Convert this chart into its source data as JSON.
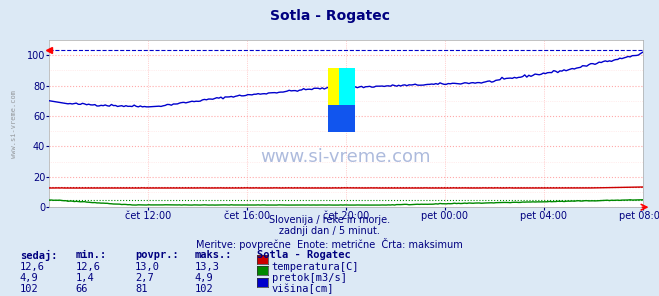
{
  "title": "Sotla - Rogatec",
  "subtitle1": "Slovenija / reke in morje.",
  "subtitle2": "zadnji dan / 5 minut.",
  "subtitle3": "Meritve: povprečne  Enote: metrične  Črta: maksimum",
  "watermark": "www.si-vreme.com",
  "side_label": "www.si-vreme.com",
  "bg_color": "#dce9f5",
  "plot_bg_color": "#ffffff",
  "grid_color_major": "#ffaaaa",
  "grid_color_minor": "#ffdddd",
  "title_color": "#000080",
  "subtitle_color": "#000080",
  "watermark_color": "#3355aa",
  "xlabel_color": "#000080",
  "table_header_color": "#000080",
  "table_value_color": "#000080",
  "x_tick_labels": [
    "čet 12:00",
    "čet 16:00",
    "čet 20:00",
    "pet 00:00",
    "pet 04:00",
    "pet 08:00"
  ],
  "x_tick_positions": [
    0.1667,
    0.3333,
    0.5,
    0.6667,
    0.8333,
    1.0
  ],
  "ylim": [
    0,
    110
  ],
  "yticks": [
    0,
    20,
    40,
    60,
    80,
    100
  ],
  "max_line_value": 103.3,
  "temp_color": "#cc0000",
  "flow_color": "#008800",
  "height_color": "#0000cc",
  "table_headers": [
    "sedaj:",
    "min.:",
    "povpr.:",
    "maks.:"
  ],
  "row_temp": [
    "12,6",
    "12,6",
    "13,0",
    "13,3"
  ],
  "row_flow": [
    "4,9",
    "1,4",
    "2,7",
    "4,9"
  ],
  "row_height": [
    "102",
    "66",
    "81",
    "102"
  ],
  "legend_title": "Sotla - Rogatec",
  "legend_temp": "temperatura[C]",
  "legend_flow": "pretok[m3/s]",
  "legend_height": "višina[cm]",
  "n_points": 288
}
